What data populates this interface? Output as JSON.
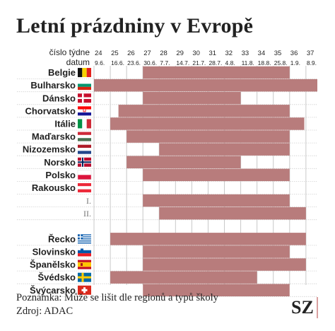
{
  "title": "Letní prázdniny v Evropě",
  "note": "Poznámka: Může se lišit dle regionů a typů školy",
  "source": "Zdroj:  ADAC",
  "logo": "SZ",
  "colors": {
    "bar": "#b87c7c",
    "grid": "#c8c8c8",
    "text": "#1f1f1f"
  },
  "chart_data": {
    "type": "gantt",
    "header_labels": {
      "week": "číslo týdne",
      "date": "datum"
    },
    "weeks": [
      24,
      25,
      26,
      27,
      28,
      29,
      30,
      31,
      32,
      33,
      34,
      35,
      36,
      37
    ],
    "dates": [
      "9.6.",
      "16.6.",
      "23.6.",
      "30.6.",
      "7.7.",
      "14.7.",
      "21.7.",
      "28.7.",
      "4.8.",
      "11.8.",
      "18.8.",
      "25.8.",
      "1.9.",
      "8.9."
    ],
    "rows": [
      {
        "label": "Belgie",
        "flag": "belgium-flag",
        "start": 27,
        "end": 36
      },
      {
        "label": "Bulharsko",
        "flag": "bulgaria-flag",
        "start": 24,
        "end": 37.7
      },
      {
        "label": "Dánsko",
        "flag": "denmark-flag",
        "start": 27,
        "end": 33
      },
      {
        "label": "Chorvatsko",
        "flag": "croatia-flag",
        "start": 25.5,
        "end": 36
      },
      {
        "label": "Itálie",
        "flag": "italy-flag",
        "start": 25,
        "end": 36.9
      },
      {
        "label": "Maďarsko",
        "flag": "hungary-flag",
        "start": 26,
        "end": 36
      },
      {
        "label": "Nizozemsko",
        "flag": "netherlands-flag",
        "start": 28,
        "end": 36
      },
      {
        "label": "Norsko",
        "flag": "norway-flag",
        "start": 26,
        "end": 33
      },
      {
        "label": "Polsko",
        "flag": "poland-flag",
        "start": 27,
        "end": 36
      },
      {
        "label": "Rakousko",
        "flag": "austria-flag",
        "start": null,
        "end": null
      },
      {
        "label": "I.",
        "flag": null,
        "start": 27,
        "end": 36
      },
      {
        "label": "II.",
        "flag": null,
        "start": 28,
        "end": 37
      },
      {
        "label": "",
        "flag": null,
        "start": null,
        "end": null
      },
      {
        "label": "Řecko",
        "flag": "greece-flag",
        "start": 25,
        "end": 37
      },
      {
        "label": "Slovinsko",
        "flag": "slovenia-flag",
        "start": 27,
        "end": 36
      },
      {
        "label": "Španělsko",
        "flag": "spain-flag",
        "start": 27,
        "end": 37
      },
      {
        "label": "Švédsko",
        "flag": "sweden-flag",
        "start": 25,
        "end": 34
      },
      {
        "label": "Švýcarsko",
        "flag": "switzerland-flag",
        "start": 27,
        "end": 36
      }
    ]
  }
}
